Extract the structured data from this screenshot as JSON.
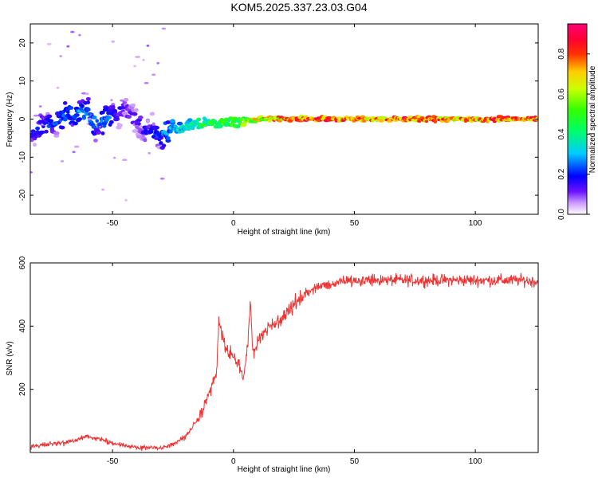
{
  "title": "KOM5.2025.337.23.03.G04",
  "chart_data": [
    {
      "type": "heatmap",
      "xlabel": "Height of straight line (km)",
      "ylabel": "Frequency (Hz)",
      "xlim": [
        -84,
        126
      ],
      "ylim": [
        -25,
        25
      ],
      "xticks": [
        -50,
        0,
        50,
        100
      ],
      "yticks": [
        -20,
        -10,
        0,
        10,
        20
      ],
      "colorbar": {
        "label": "Normalized spectral amplitude",
        "range": [
          0,
          0.95
        ],
        "ticks": [
          0.0,
          0.2,
          0.4,
          0.6,
          0.8
        ],
        "ticklabels": [
          "0.0",
          "0.2",
          "0.4",
          "0.6",
          "0.8"
        ]
      },
      "ridge": {
        "x": [
          -84,
          -75,
          -65,
          -55,
          -45,
          -35,
          -28,
          -20,
          -10,
          0,
          10,
          20,
          30,
          40,
          50,
          60,
          70,
          80,
          90,
          100,
          110,
          126
        ],
        "frequency": [
          -4,
          -1,
          2,
          -1,
          3,
          -4,
          -3,
          -2,
          -1,
          -1,
          0,
          0,
          0,
          0,
          0,
          0,
          0,
          0,
          0,
          0,
          0,
          0
        ],
        "amplitude": [
          0.2,
          0.25,
          0.3,
          0.3,
          0.15,
          0.2,
          0.3,
          0.4,
          0.5,
          0.55,
          0.7,
          0.8,
          0.85,
          0.85,
          0.8,
          0.8,
          0.85,
          0.85,
          0.8,
          0.8,
          0.85,
          0.85
        ]
      }
    },
    {
      "type": "line",
      "xlabel": "Height of straight line (km)",
      "ylabel": "SNR (v/v)",
      "xlim": [
        -84,
        126
      ],
      "ylim": [
        0,
        600
      ],
      "xticks": [
        -50,
        0,
        50,
        100
      ],
      "yticks": [
        200,
        400,
        600
      ],
      "line_color": "#ee3333",
      "series": [
        {
          "x": [
            -84,
            -70,
            -60,
            -50,
            -40,
            -30,
            -25,
            -20,
            -15,
            -12,
            -10,
            -7,
            -6,
            -5,
            -3,
            0,
            2,
            4,
            6,
            7,
            8,
            10,
            12,
            15,
            20,
            25,
            30,
            35,
            40,
            45,
            50,
            60,
            70,
            80,
            90,
            100,
            110,
            120,
            126
          ],
          "y": [
            20,
            30,
            50,
            30,
            15,
            15,
            25,
            50,
            100,
            150,
            180,
            250,
            420,
            380,
            330,
            300,
            280,
            230,
            350,
            480,
            300,
            350,
            380,
            400,
            420,
            470,
            500,
            525,
            530,
            545,
            545,
            545,
            545,
            545,
            545,
            545,
            545,
            545,
            540
          ]
        }
      ]
    }
  ]
}
